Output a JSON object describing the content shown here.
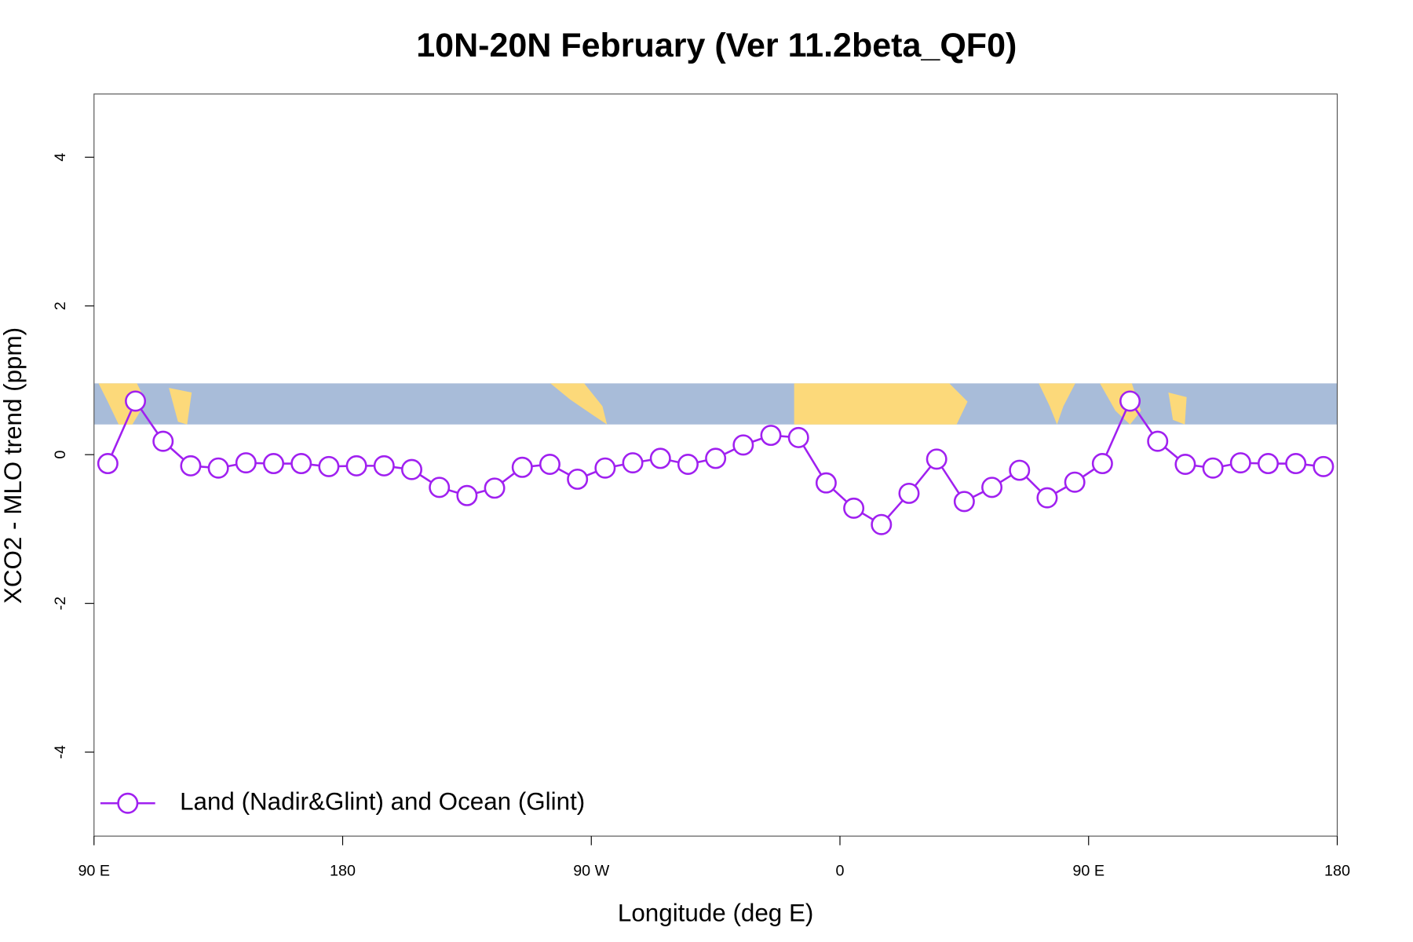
{
  "chart_data": {
    "type": "line",
    "title": "10N-20N February (Ver 11.2beta_QF0)",
    "xlabel": "Longitude (deg E)",
    "ylabel": "XCO2 - MLO trend (ppm)",
    "x": [
      95,
      105,
      115,
      125,
      135,
      145,
      155,
      165,
      175,
      185,
      195,
      205,
      215,
      225,
      235,
      245,
      255,
      265,
      275,
      285,
      295,
      305,
      315,
      325,
      335,
      345,
      355,
      365,
      375,
      385,
      395,
      405,
      415,
      425,
      435,
      445,
      455,
      465,
      475,
      485,
      495,
      505,
      515,
      525,
      535
    ],
    "series": [
      {
        "name": "Land (Nadir&Glint) and Ocean (Glint)",
        "color": "#a020f0",
        "values": [
          -0.12,
          0.72,
          0.18,
          -0.15,
          -0.18,
          -0.11,
          -0.12,
          -0.12,
          -0.16,
          -0.15,
          -0.15,
          -0.2,
          -0.44,
          -0.55,
          -0.45,
          -0.17,
          -0.13,
          -0.33,
          -0.18,
          -0.11,
          -0.05,
          -0.13,
          -0.05,
          0.13,
          0.26,
          0.23,
          -0.38,
          -0.72,
          -0.94,
          -0.52,
          -0.06,
          -0.63,
          -0.44,
          -0.21,
          -0.58,
          -0.37,
          -0.12,
          0.72,
          0.18,
          -0.13,
          -0.18,
          -0.11,
          -0.12,
          -0.12,
          -0.16
        ]
      }
    ],
    "xlim": [
      90,
      540
    ],
    "xticks": [
      {
        "value": 90,
        "label": "90 E"
      },
      180,
      {
        "value": 270,
        "label": "90 W"
      },
      {
        "value": 360,
        "label": "0"
      },
      {
        "value": 450,
        "label": "90 E"
      },
      {
        "value": 540,
        "label": "180"
      }
    ],
    "ylim": [
      -5.13,
      4.85
    ],
    "yticks": [
      -4,
      -2,
      0,
      2,
      4
    ],
    "legend": "bottom-left"
  }
}
